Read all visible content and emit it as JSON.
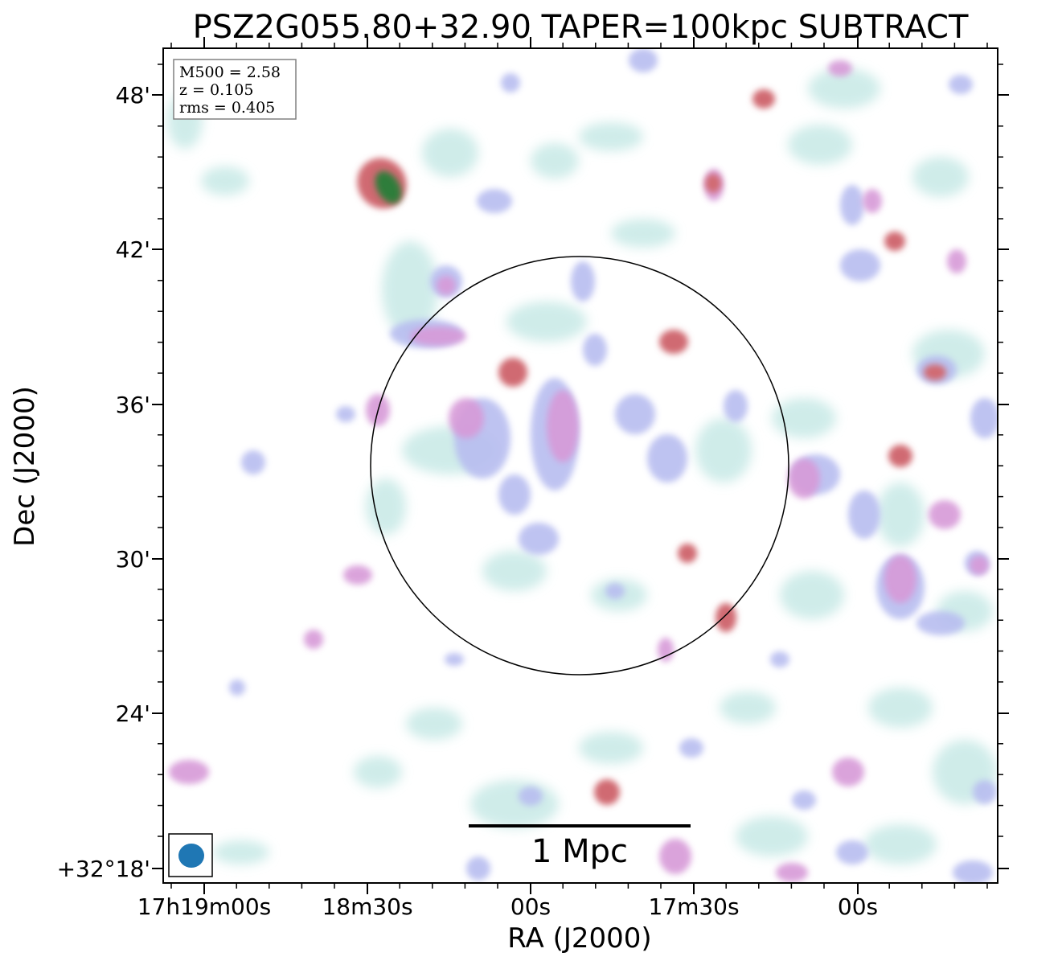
{
  "figure": {
    "title": "PSZ2G055.80+32.90 TAPER=100kpc SUBTRACT",
    "xlabel": "RA (J2000)",
    "ylabel": "Dec (J2000)",
    "x_ticks": [
      "17h19m00s",
      "18m30s",
      "00s",
      "17m30s",
      "00s"
    ],
    "y_ticks": [
      "48'",
      "42'",
      "36'",
      "30'",
      "24'",
      "+32°18'"
    ]
  },
  "info_box": {
    "mass": "M500 = 2.58",
    "redshift": "z = 0.105",
    "rms": "rms = 0.405"
  },
  "scale_bar": {
    "label": "1 Mpc"
  },
  "colors": {
    "beam": "#1f77b4",
    "faint_emission": "#c7e9e6",
    "low_emission": "#b8bdf0",
    "mid_emission": "#d79ad8",
    "high_emission": "#d06a72",
    "peak_emission": "#2e7d3a",
    "frame": "#000000"
  }
}
